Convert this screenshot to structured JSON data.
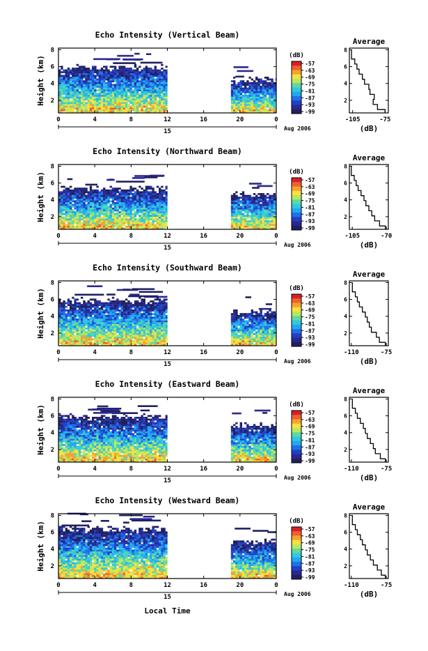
{
  "figure": {
    "xlabel": "Local Time",
    "date_label": "Aug 2006",
    "day_label": "15",
    "colorbar_unit": "(dB)",
    "colorbar_ticks": [
      "-57",
      "-63",
      "-69",
      "-75",
      "-81",
      "-87",
      "-93",
      "-99"
    ],
    "colorbar_colors": [
      "#d6202a",
      "#f0602a",
      "#f8a030",
      "#f8e040",
      "#b8e860",
      "#60d8a0",
      "#30c8e0",
      "#20a8f0",
      "#2070e8",
      "#2040c8",
      "#2a2890",
      "#202060"
    ],
    "gap_hours": [
      12,
      19
    ]
  },
  "chart_data": [
    {
      "type": "heatmap",
      "title": "Echo Intensity (Vertical Beam)",
      "ylabel": "Height (km)",
      "x_ticks": [
        "0",
        "4",
        "8",
        "12",
        "16",
        "20",
        "0"
      ],
      "y_ticks": [
        "2",
        "4",
        "6",
        "8"
      ],
      "xlim": [
        0,
        24
      ],
      "ylim": [
        0.5,
        8.2
      ],
      "colorbar_range": [
        -99,
        -57
      ],
      "data_top_km": [
        6.0,
        4.5
      ],
      "average_profile": {
        "title": "Average",
        "xlabel": "(dB)",
        "x_ticks": [
          "-105",
          "-75"
        ],
        "y_ticks": [
          "2",
          "4",
          "6",
          "8"
        ],
        "xlim": [
          -108,
          -72
        ],
        "height_km": [
          0.6,
          1.2,
          1.8,
          2.4,
          3.0,
          3.6,
          4.2,
          4.8,
          5.4,
          6.0,
          6.6,
          7.2
        ],
        "db": [
          -75,
          -82,
          -86,
          -85,
          -89,
          -90,
          -94,
          -96,
          -99,
          -101,
          -103,
          -106
        ]
      }
    },
    {
      "type": "heatmap",
      "title": "Echo Intensity (Northward Beam)",
      "ylabel": "Height (km)",
      "x_ticks": [
        "0",
        "4",
        "8",
        "12",
        "16",
        "20",
        "0"
      ],
      "y_ticks": [
        "2",
        "4",
        "6",
        "8"
      ],
      "xlim": [
        0,
        24
      ],
      "ylim": [
        0.5,
        8.2
      ],
      "colorbar_range": [
        -99,
        -57
      ],
      "data_top_km": [
        5.5,
        4.8
      ],
      "average_profile": {
        "title": "Average",
        "xlabel": "(dB)",
        "x_ticks": [
          "-105",
          "-70"
        ],
        "y_ticks": [
          "2",
          "4",
          "6",
          "8"
        ],
        "xlim": [
          -108,
          -68
        ],
        "height_km": [
          0.6,
          1.2,
          1.8,
          2.4,
          3.0,
          3.6,
          4.2,
          4.8,
          5.4,
          6.0,
          6.6,
          7.2
        ],
        "db": [
          -71,
          -77,
          -82,
          -85,
          -88,
          -91,
          -93,
          -96,
          -99,
          -101,
          -103,
          -106
        ]
      }
    },
    {
      "type": "heatmap",
      "title": "Echo Intensity (Southward Beam)",
      "ylabel": "Height (km)",
      "x_ticks": [
        "0",
        "4",
        "8",
        "12",
        "16",
        "20",
        "0"
      ],
      "y_ticks": [
        "2",
        "4",
        "6",
        "8"
      ],
      "xlim": [
        0,
        24
      ],
      "ylim": [
        0.5,
        8.2
      ],
      "colorbar_range": [
        -99,
        -57
      ],
      "data_top_km": [
        6.0,
        4.6
      ],
      "average_profile": {
        "title": "Average",
        "xlabel": "(dB)",
        "x_ticks": [
          "-110",
          "-75"
        ],
        "y_ticks": [
          "2",
          "4",
          "6",
          "8"
        ],
        "xlim": [
          -112,
          -73
        ],
        "height_km": [
          0.6,
          1.2,
          1.8,
          2.4,
          3.0,
          3.6,
          4.2,
          4.8,
          5.4,
          6.0,
          6.6,
          7.2
        ],
        "db": [
          -76,
          -82,
          -85,
          -90,
          -92,
          -94,
          -96,
          -99,
          -102,
          -104,
          -106,
          -109
        ]
      }
    },
    {
      "type": "heatmap",
      "title": "Echo Intensity (Eastward Beam)",
      "ylabel": "Height (km)",
      "x_ticks": [
        "0",
        "4",
        "8",
        "12",
        "16",
        "20",
        "0"
      ],
      "y_ticks": [
        "2",
        "4",
        "6",
        "8"
      ],
      "xlim": [
        0,
        24
      ],
      "ylim": [
        0.5,
        8.2
      ],
      "colorbar_range": [
        -99,
        -57
      ],
      "data_top_km": [
        6.0,
        5.0
      ],
      "average_profile": {
        "title": "Average",
        "xlabel": "(dB)",
        "x_ticks": [
          "-110",
          "-75"
        ],
        "y_ticks": [
          "2",
          "4",
          "6",
          "8"
        ],
        "xlim": [
          -112,
          -73
        ],
        "height_km": [
          0.6,
          1.2,
          1.8,
          2.4,
          3.0,
          3.6,
          4.2,
          4.8,
          5.4,
          6.0,
          6.6,
          7.2
        ],
        "db": [
          -76,
          -81,
          -86,
          -88,
          -91,
          -94,
          -96,
          -98,
          -101,
          -104,
          -106,
          -109
        ]
      }
    },
    {
      "type": "heatmap",
      "title": "Echo Intensity (Westward Beam)",
      "ylabel": "Height (km)",
      "x_ticks": [
        "0",
        "4",
        "8",
        "12",
        "16",
        "20",
        "0"
      ],
      "y_ticks": [
        "2",
        "4",
        "6",
        "8"
      ],
      "xlim": [
        0,
        24
      ],
      "ylim": [
        0.5,
        8.2
      ],
      "colorbar_range": [
        -99,
        -57
      ],
      "data_top_km": [
        6.5,
        5.0
      ],
      "average_profile": {
        "title": "Average",
        "xlabel": "(dB)",
        "x_ticks": [
          "-110",
          "-75"
        ],
        "y_ticks": [
          "2",
          "4",
          "6",
          "8"
        ],
        "xlim": [
          -112,
          -73
        ],
        "height_km": [
          0.6,
          1.2,
          1.8,
          2.4,
          3.0,
          3.6,
          4.2,
          4.8,
          5.4,
          6.0,
          6.6,
          7.2
        ],
        "db": [
          -76,
          -80,
          -84,
          -88,
          -91,
          -94,
          -96,
          -99,
          -101,
          -104,
          -106,
          -109
        ]
      }
    }
  ]
}
